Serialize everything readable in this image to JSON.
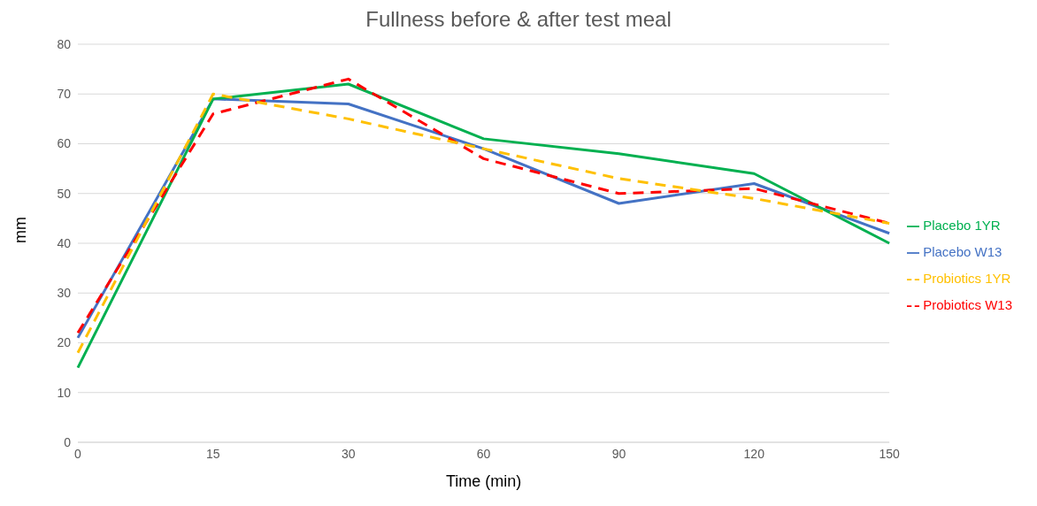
{
  "chart_data": {
    "type": "line",
    "title": "Fullness before & after test meal",
    "xlabel": "Time (min)",
    "ylabel": "mm",
    "categories": [
      "0",
      "15",
      "30",
      "60",
      "90",
      "120",
      "150"
    ],
    "series": [
      {
        "name": "Placebo W13",
        "color": "#4472c4",
        "line_style": "solid",
        "values": [
          21,
          69,
          68,
          59,
          48,
          52,
          42
        ]
      },
      {
        "name": "Placebo 1YR",
        "color": "#00b050",
        "line_style": "solid",
        "values": [
          15,
          69,
          72,
          61,
          58,
          54,
          40
        ]
      },
      {
        "name": "Probiotics W13",
        "color": "#ff0000",
        "line_style": "dashed",
        "values": [
          22,
          66,
          73,
          57,
          50,
          51,
          44
        ]
      },
      {
        "name": "Probiotics 1YR",
        "color": "#ffc000",
        "line_style": "dashed",
        "values": [
          18,
          70,
          65,
          59,
          53,
          49,
          44
        ]
      }
    ],
    "ylim": [
      0,
      80
    ],
    "yticks": [
      0,
      10,
      20,
      30,
      40,
      50,
      60,
      70,
      80
    ],
    "grid": "y",
    "legend": "right",
    "marker": "none"
  }
}
